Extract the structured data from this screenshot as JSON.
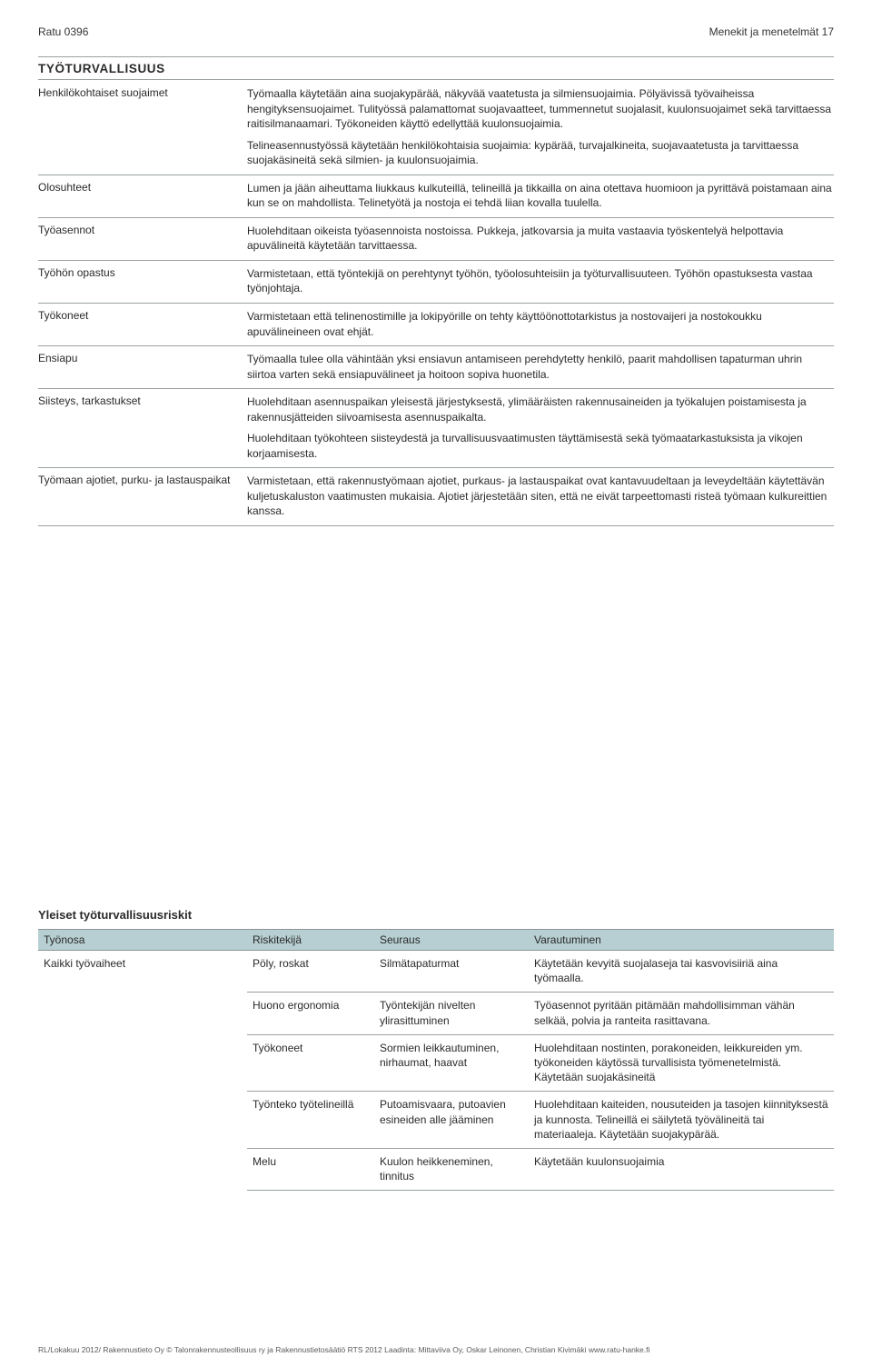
{
  "header": {
    "doc_code": "Ratu 0396",
    "page_title": "Menekit ja menetelmät  17"
  },
  "safety": {
    "section_title": "TYÖTURVALLISUUS",
    "rows": [
      {
        "label": "Henkilökohtaiset suojaimet",
        "paras": [
          "Työmaalla käytetään aina suojakypärää, näkyvää vaatetusta ja silmiensuojaimia. Pölyävissä työvaiheissa hengityksensuojaimet. Tulityössä palamattomat suojavaatteet, tummennetut suojalasit, kuulonsuojaimet sekä tarvittaessa raitisilmanaamari. Työkoneiden käyttö edellyttää kuulonsuojaimia.",
          "Telineasennustyössä käytetään henkilökohtaisia suojaimia: kypärää, turvajalkineita, suojavaatetusta ja tarvittaessa suojakäsineitä sekä silmien- ja kuulonsuojaimia."
        ]
      },
      {
        "label": "Olosuhteet",
        "paras": [
          "Lumen ja jään aiheuttama liukkaus kulkuteillä, telineillä ja tikkailla on aina otettava huomioon ja pyrittävä poistamaan aina kun se on mahdollista. Telinetyötä ja nostoja ei tehdä liian kovalla tuulella."
        ]
      },
      {
        "label": "Työasennot",
        "paras": [
          "Huolehditaan oikeista työasennoista nostoissa. Pukkeja, jatkovarsia ja muita vastaavia työskentelyä helpottavia apuvälineitä käytetään tarvittaessa."
        ]
      },
      {
        "label": "Työhön opastus",
        "paras": [
          "Varmistetaan, että työntekijä on perehtynyt työhön, työolosuhteisiin ja työturvallisuuteen. Työhön opastuksesta vastaa työnjohtaja."
        ]
      },
      {
        "label": "Työkoneet",
        "paras": [
          "Varmistetaan että telinenostimille ja lokipyörille on tehty käyttöönottotarkistus ja nostovaijeri ja nostokoukku apuvälineineen ovat ehjät."
        ]
      },
      {
        "label": "Ensiapu",
        "paras": [
          "Työmaalla tulee olla vähintään yksi ensiavun antamiseen perehdytetty henkilö, paarit mahdollisen tapaturman uhrin siirtoa varten sekä ensiapuvälineet ja hoitoon sopiva huonetila."
        ]
      },
      {
        "label": "Siisteys, tarkastukset",
        "paras": [
          "Huolehditaan asennuspaikan yleisestä järjestyksestä, ylimääräisten rakennusaineiden ja työkalujen poistamisesta ja rakennusjätteiden siivoamisesta asennuspaikalta.",
          "Huolehditaan työkohteen siisteydestä ja turvallisuusvaatimusten täyttämisestä sekä työmaatarkastuksista ja vikojen korjaamisesta."
        ]
      },
      {
        "label": "Työmaan ajotiet, purku- ja lastauspaikat",
        "paras": [
          "Varmistetaan, että rakennustyömaan ajotiet, purkaus- ja lastauspaikat ovat kantavuudeltaan ja leveydeltään käytettävän kuljetuskaluston vaatimusten mukaisia. Ajotiet järjestetään siten, että ne eivät tarpeettomasti risteä työmaan kulkureittien kanssa."
        ]
      }
    ]
  },
  "risks": {
    "title": "Yleiset työturvallisuusriskit",
    "columns": [
      "Työnosa",
      "Riskitekijä",
      "Seuraus",
      "Varautuminen"
    ],
    "phase": "Kaikki työvaiheet",
    "rows": [
      {
        "risk": "Pöly, roskat",
        "cons": "Silmätapaturmat",
        "pre": "Käytetään kevyitä suojalaseja tai kasvovisiiriä aina työmaalla."
      },
      {
        "risk": "Huono ergonomia",
        "cons": "Työntekijän nivelten ylirasittuminen",
        "pre": "Työasennot pyritään pitämään mahdollisimman vähän selkää, polvia ja ranteita rasittavana."
      },
      {
        "risk": "Työkoneet",
        "cons": "Sormien leikkautuminen, nirhaumat, haavat",
        "pre": "Huolehditaan nostinten, porakoneiden, leikkureiden ym. työkoneiden käytössä turvallisista työmenetelmistä. Käytetään suojakäsineitä"
      },
      {
        "risk": "Työnteko työtelineillä",
        "cons": "Putoamisvaara, putoavien esineiden alle jääminen",
        "pre": "Huolehditaan kaiteiden, nousuteiden ja tasojen kiinnityksestä ja kunnosta. Telineillä ei säilytetä työvälineitä tai materiaaleja. Käytetään suojakypärää."
      },
      {
        "risk": "Melu",
        "cons": "Kuulon heikkeneminen, tinnitus",
        "pre": "Käytetään kuulonsuojaimia"
      }
    ]
  },
  "footer": {
    "text": "RL/Lokakuu 2012/ Rakennustieto Oy © Talonrakennusteollisuus ry ja Rakennustietosäätiö RTS 2012   Laadinta: Mittaviiva Oy, Oskar Leinonen, Christian Kivimäki   www.ratu-hanke.fi"
  },
  "colors": {
    "headerBg": "#b7cfd2",
    "ruleColor": "#9aa0a0",
    "textColor": "#2a2a2a"
  }
}
